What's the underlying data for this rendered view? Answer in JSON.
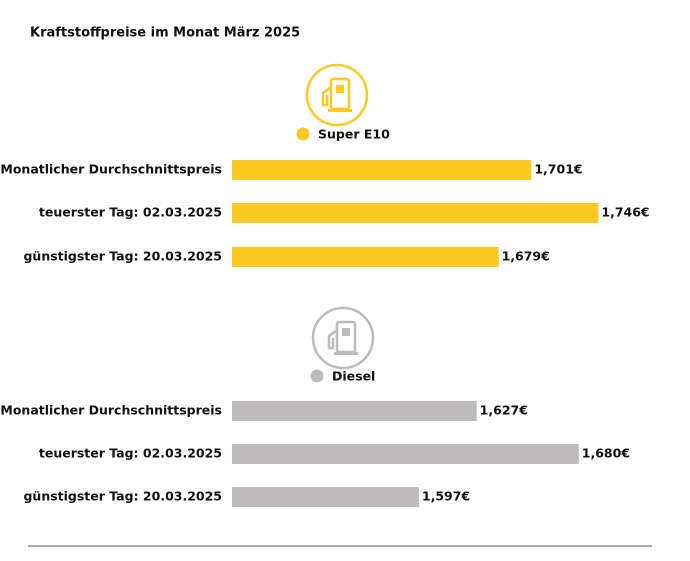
{
  "title": "Kraftstoffpreise im Monat März 2025",
  "chart_data": [
    {
      "type": "bar",
      "orientation": "horizontal",
      "categories": [
        "Monatlicher Durchschnittspreis",
        "teuerster Tag: 02.03.2025",
        "günstigster Tag: 20.03.2025"
      ],
      "series": [
        {
          "name": "Super E10",
          "color": "#fcc923",
          "values": [
            1.701,
            1.746,
            1.679
          ],
          "value_labels": [
            "1,701€",
            "1,746€",
            "1,679€"
          ]
        }
      ],
      "xlim": [
        1.5,
        1.782
      ]
    },
    {
      "type": "bar",
      "orientation": "horizontal",
      "categories": [
        "Monatlicher Durchschnittspreis",
        "teuerster Tag: 02.03.2025",
        "günstigster Tag: 20.03.2025"
      ],
      "series": [
        {
          "name": "Diesel",
          "color": "#bdbbbb",
          "values": [
            1.627,
            1.68,
            1.597
          ],
          "value_labels": [
            "1,627€",
            "1,680€",
            "1,597€"
          ]
        }
      ],
      "xlim": [
        1.5,
        1.718
      ]
    }
  ]
}
